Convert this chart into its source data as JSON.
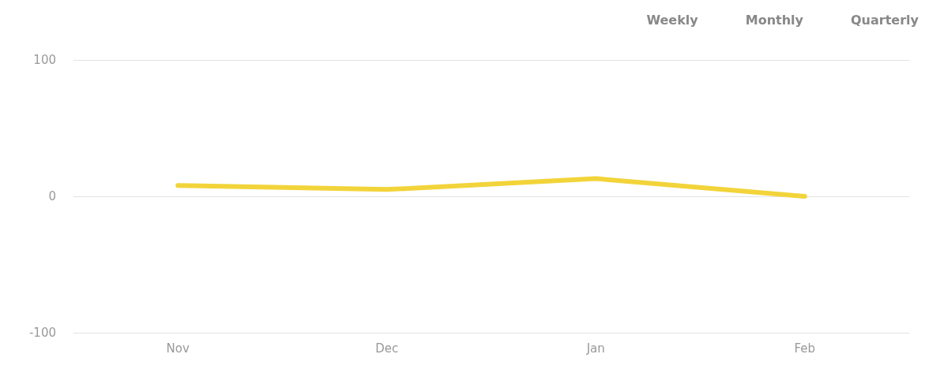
{
  "chart_data": {
    "type": "line",
    "categories": [
      "Nov",
      "Dec",
      "Jan",
      "Feb"
    ],
    "series": [
      {
        "color": "#f2d43a",
        "values": [
          8,
          5,
          13,
          0
        ]
      }
    ],
    "ylim": [
      -100,
      100
    ],
    "yticks": [
      -100,
      0,
      100
    ],
    "grid": "y",
    "marker": "none",
    "annotations": [
      "Weekly",
      "Monthly",
      "Quarterly"
    ]
  }
}
